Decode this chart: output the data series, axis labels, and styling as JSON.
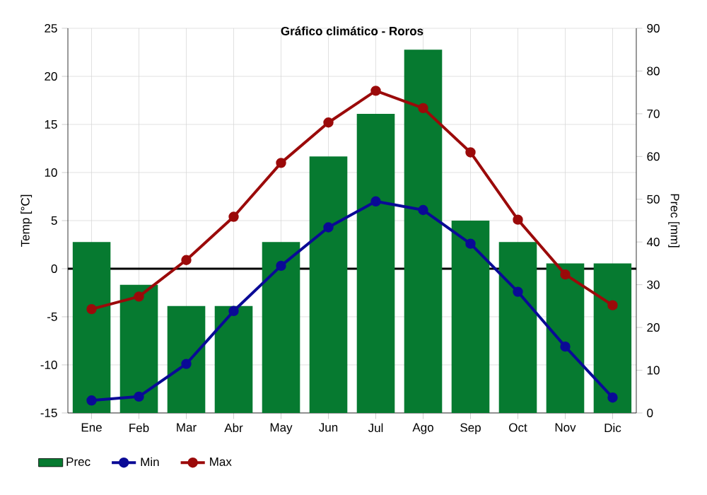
{
  "chart_data": {
    "type": "bar",
    "title": "Gráfico climático - Roros",
    "ylabel": "Temp [°C]",
    "y2label": "Prec [mm]",
    "categories": [
      "Ene",
      "Feb",
      "Mar",
      "Abr",
      "May",
      "Jun",
      "Jul",
      "Ago",
      "Sep",
      "Oct",
      "Nov",
      "Dic"
    ],
    "series": [
      {
        "name": "Prec",
        "axis": "y2",
        "color": "#067a30",
        "values": [
          40,
          30,
          25,
          25,
          40,
          60,
          70,
          85,
          45,
          40,
          35,
          35
        ]
      },
      {
        "name": "Min",
        "type": "line",
        "color": "#0a0a96",
        "values": [
          -13.7,
          -13.3,
          -9.9,
          -4.4,
          0.3,
          4.3,
          7.0,
          6.1,
          2.6,
          -2.4,
          -8.1,
          -13.4
        ]
      },
      {
        "name": "Max",
        "type": "line",
        "color": "#9b0a0a",
        "values": [
          -4.2,
          -2.9,
          0.9,
          5.4,
          11.0,
          15.2,
          18.5,
          16.7,
          12.1,
          5.1,
          -0.6,
          -3.8
        ]
      }
    ],
    "ylim": [
      -15,
      25
    ],
    "yticks": [
      -15,
      -10,
      -5,
      0,
      5,
      10,
      15,
      20,
      25
    ],
    "y2lim": [
      0,
      90
    ],
    "y2ticks": [
      0,
      10,
      20,
      30,
      40,
      50,
      60,
      70,
      80,
      90
    ],
    "ref_lines": [
      {
        "axis": "y",
        "value": 0,
        "color": "#000000"
      }
    ],
    "grid": true,
    "legend": "bottom",
    "marker": "circle",
    "line_style": "solid"
  }
}
